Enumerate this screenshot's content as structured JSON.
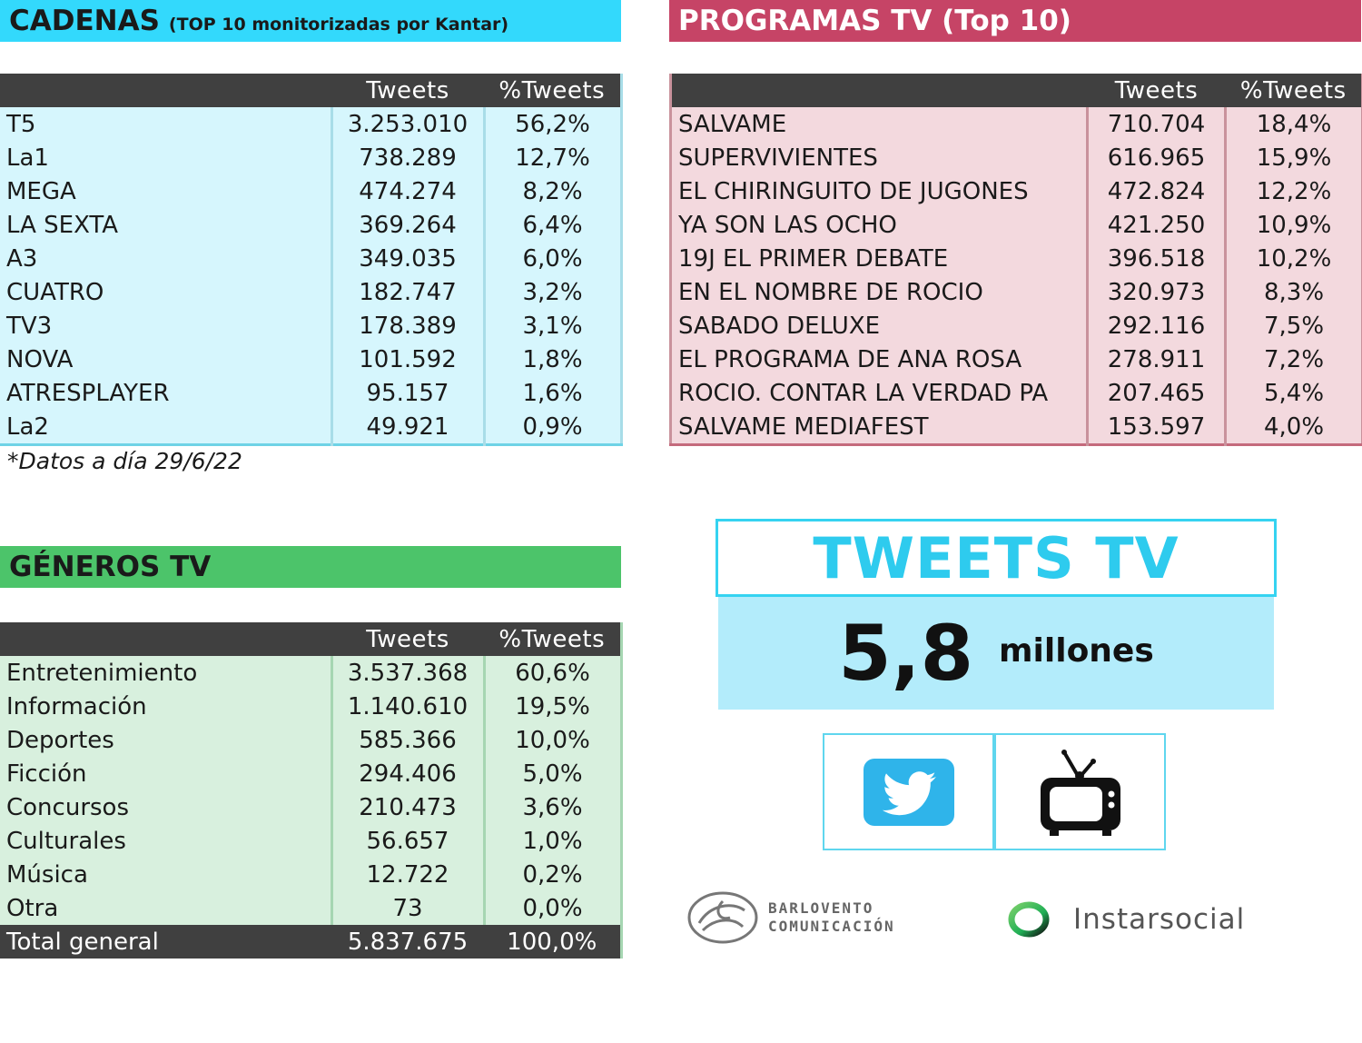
{
  "cadenas": {
    "title": "CADENAS",
    "subtitle": "(TOP 10 monitorizadas por Kantar)",
    "headers": [
      "",
      "Tweets",
      "%Tweets"
    ],
    "rows": [
      [
        "T5",
        "3.253.010",
        "56,2%"
      ],
      [
        "La1",
        "738.289",
        "12,7%"
      ],
      [
        "MEGA",
        "474.274",
        "8,2%"
      ],
      [
        "LA SEXTA",
        "369.264",
        "6,4%"
      ],
      [
        "A3",
        "349.035",
        "6,0%"
      ],
      [
        "CUATRO",
        "182.747",
        "3,2%"
      ],
      [
        "TV3",
        "178.389",
        "3,1%"
      ],
      [
        "NOVA",
        "101.592",
        "1,8%"
      ],
      [
        "ATRESPLAYER",
        "95.157",
        "1,6%"
      ],
      [
        "La2",
        "49.921",
        "0,9%"
      ]
    ],
    "note": "*Datos a día 29/6/22"
  },
  "programas": {
    "title": "PROGRAMAS TV (Top 10)",
    "headers": [
      "",
      "Tweets",
      "%Tweets"
    ],
    "rows": [
      [
        "SALVAME",
        "710.704",
        "18,4%"
      ],
      [
        "SUPERVIVIENTES",
        "616.965",
        "15,9%"
      ],
      [
        "EL CHIRINGUITO DE JUGONES",
        "472.824",
        "12,2%"
      ],
      [
        "YA SON LAS OCHO",
        "421.250",
        "10,9%"
      ],
      [
        "19J EL PRIMER DEBATE",
        "396.518",
        "10,2%"
      ],
      [
        "EN EL NOMBRE DE ROCIO",
        "320.973",
        "8,3%"
      ],
      [
        "SABADO DELUXE",
        "292.116",
        "7,5%"
      ],
      [
        "EL PROGRAMA DE ANA ROSA",
        "278.911",
        "7,2%"
      ],
      [
        "ROCIO. CONTAR LA VERDAD PA",
        "207.465",
        "5,4%"
      ],
      [
        "SALVAME MEDIAFEST",
        "153.597",
        "4,0%"
      ]
    ]
  },
  "generos": {
    "title": "GÉNEROS TV",
    "headers": [
      "",
      "Tweets",
      "%Tweets"
    ],
    "rows": [
      [
        "Entretenimiento",
        "3.537.368",
        "60,6%"
      ],
      [
        "Información",
        "1.140.610",
        "19,5%"
      ],
      [
        "Deportes",
        "585.366",
        "10,0%"
      ],
      [
        "Ficción",
        "294.406",
        "5,0%"
      ],
      [
        "Concursos",
        "210.473",
        "3,6%"
      ],
      [
        "Culturales",
        "56.657",
        "1,0%"
      ],
      [
        "Música",
        "12.722",
        "0,2%"
      ],
      [
        "Otra",
        "73",
        "0,0%"
      ]
    ],
    "total": [
      "Total general",
      "5.837.675",
      "100,0%"
    ]
  },
  "tweets_tv": {
    "title": "TWEETS TV",
    "value": "5,8",
    "unit": "millones"
  },
  "icons": [
    "twitter-icon",
    "tv-icon"
  ],
  "logos": {
    "barlovento_line1": "BARLOVENTO",
    "barlovento_line2": "COMUNICACIÓN",
    "instarsocial": "Instarsocial"
  },
  "colors": {
    "cadenas_banner": "#33d9fc",
    "programas_banner": "#c64466",
    "generos_banner": "#4cc46a",
    "header_dark": "#404040",
    "tweets_accent": "#2ecbee"
  }
}
